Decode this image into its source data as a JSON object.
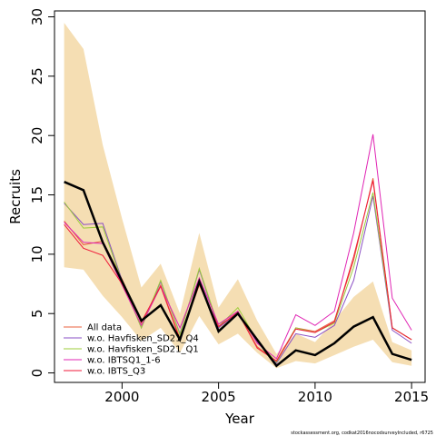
{
  "chart_data": {
    "type": "line",
    "title": "",
    "xlabel": "Year",
    "ylabel": "Recruits",
    "xlim": [
      1996.5,
      2015.7
    ],
    "ylim": [
      -0.8,
      30.5
    ],
    "xticks": [
      2000,
      2005,
      2010,
      2015
    ],
    "yticks": [
      0,
      5,
      10,
      15,
      20,
      25,
      30
    ],
    "grid": false,
    "legend_position": "bottom-left",
    "x": [
      1997,
      1998,
      1999,
      2000,
      2001,
      2002,
      2003,
      2004,
      2005,
      2006,
      2007,
      2008,
      2009,
      2010,
      2011,
      2012,
      2013,
      2014,
      2015
    ],
    "band": {
      "color": "#f5deb3",
      "upper": [
        29.5,
        27.3,
        19.2,
        13.0,
        7.2,
        9.2,
        5.0,
        11.8,
        5.5,
        7.9,
        4.4,
        1.6,
        3.3,
        2.6,
        4.4,
        6.4,
        7.7,
        2.6,
        1.9
      ],
      "lower": [
        8.9,
        8.7,
        6.5,
        4.7,
        2.7,
        3.8,
        1.7,
        4.8,
        2.4,
        3.3,
        1.7,
        0.4,
        1.0,
        0.8,
        1.5,
        2.2,
        2.8,
        0.9,
        0.6
      ]
    },
    "main_line": {
      "color": "#000000",
      "values": [
        16.1,
        15.4,
        11.0,
        7.7,
        4.4,
        5.7,
        2.8,
        7.7,
        3.5,
        5.0,
        2.8,
        0.6,
        1.9,
        1.5,
        2.5,
        3.9,
        4.7,
        1.6,
        1.1
      ]
    },
    "series": [
      {
        "name": "All data",
        "color": "#e8613c",
        "values": [
          12.8,
          10.8,
          11.1,
          7.9,
          4.2,
          7.4,
          2.9,
          7.4,
          3.9,
          5.1,
          2.2,
          1.0,
          3.8,
          3.5,
          4.4,
          9.5,
          16.4,
          3.8,
          2.8
        ]
      },
      {
        "name": "w.o. Havfisken_SD21_Q4",
        "color": "#8a4fc4",
        "values": [
          14.3,
          12.5,
          12.6,
          7.8,
          3.8,
          7.7,
          3.3,
          8.7,
          3.8,
          5.1,
          2.6,
          0.8,
          3.3,
          3.0,
          4.0,
          7.8,
          14.9,
          3.6,
          2.5
        ]
      },
      {
        "name": "w.o. Havfisken_SD21_Q1",
        "color": "#9ccc3a",
        "values": [
          14.4,
          12.2,
          12.3,
          7.7,
          3.8,
          7.8,
          3.2,
          8.8,
          3.9,
          5.5,
          2.7,
          0.9,
          3.8,
          3.4,
          4.2,
          8.9,
          15.2,
          3.8,
          2.8
        ]
      },
      {
        "name": "w.o. IBTSQ1_1-6",
        "color": "#e025b4",
        "values": [
          12.7,
          11.0,
          10.9,
          7.4,
          4.0,
          7.3,
          3.8,
          8.0,
          4.1,
          5.2,
          2.5,
          1.2,
          4.9,
          4.0,
          5.2,
          11.8,
          20.1,
          6.3,
          3.6
        ]
      },
      {
        "name": "w.o. IBTS_Q3",
        "color": "#f01a3a",
        "values": [
          12.5,
          10.5,
          9.9,
          7.5,
          4.3,
          7.3,
          2.8,
          7.5,
          3.9,
          5.1,
          2.1,
          1.0,
          3.7,
          3.4,
          4.3,
          9.8,
          16.2,
          3.8,
          2.8
        ]
      }
    ]
  },
  "footnote": "stockassessment.org, codkat2016nocodsurveyIncluded, r6725"
}
